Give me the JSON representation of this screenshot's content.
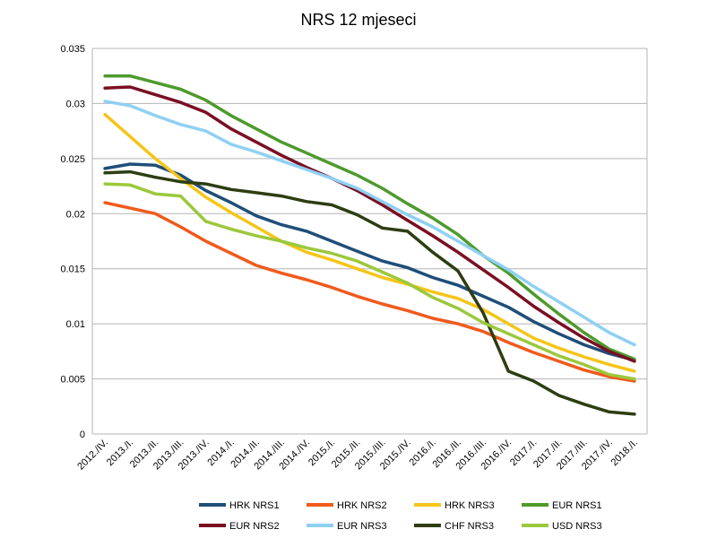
{
  "chart_data": {
    "type": "line",
    "title": "NRS 12 mjeseci",
    "xlabel": "",
    "ylabel": "",
    "ylim": [
      0,
      0.035
    ],
    "yticks": [
      "0",
      "0.005",
      "0.01",
      "0.015",
      "0.02",
      "0.025",
      "0.03",
      "0.035"
    ],
    "ytick_values": [
      0,
      0.005,
      0.01,
      0.015,
      0.02,
      0.025,
      0.03,
      0.035
    ],
    "grid": "horizontal",
    "legend_position": "bottom",
    "categories": [
      "2012./IV.",
      "2013./I.",
      "2013./II.",
      "2013./III.",
      "2013./IV.",
      "2014./I.",
      "2014./II.",
      "2014./III.",
      "2014./IV.",
      "2015./I.",
      "2015./II.",
      "2015./III.",
      "2015./IV.",
      "2016./I.",
      "2016./II.",
      "2016./III.",
      "2016./IV.",
      "2017./I.",
      "2017./II.",
      "2017./III.",
      "2017./IV.",
      "2018./I."
    ],
    "series": [
      {
        "name": "HRK NRS1",
        "color": "#1f4e79",
        "values": [
          0.0241,
          0.0245,
          0.0244,
          0.0235,
          0.0221,
          0.021,
          0.0198,
          0.019,
          0.0184,
          0.0175,
          0.0166,
          0.0157,
          0.0151,
          0.0142,
          0.0135,
          0.0125,
          0.0115,
          0.0102,
          0.0091,
          0.0081,
          0.0073,
          0.0067
        ]
      },
      {
        "name": "HRK NRS2",
        "color": "#f05a1c",
        "values": [
          0.021,
          0.0205,
          0.02,
          0.0188,
          0.0175,
          0.0164,
          0.0153,
          0.0146,
          0.014,
          0.0133,
          0.0125,
          0.0118,
          0.0112,
          0.0105,
          0.01,
          0.0093,
          0.0083,
          0.0074,
          0.0066,
          0.0058,
          0.0052,
          0.0048
        ]
      },
      {
        "name": "HRK NRS3",
        "color": "#f5c518",
        "values": [
          0.029,
          0.027,
          0.025,
          0.0232,
          0.0215,
          0.0201,
          0.0188,
          0.0175,
          0.0165,
          0.0158,
          0.015,
          0.0142,
          0.0136,
          0.0129,
          0.0123,
          0.0113,
          0.01,
          0.0087,
          0.0078,
          0.007,
          0.0063,
          0.0057
        ]
      },
      {
        "name": "EUR NRS1",
        "color": "#4e9a2d",
        "values": [
          0.0325,
          0.0325,
          0.0319,
          0.0313,
          0.0303,
          0.0289,
          0.0277,
          0.0265,
          0.0255,
          0.0245,
          0.0235,
          0.0223,
          0.0209,
          0.0196,
          0.0181,
          0.0162,
          0.0146,
          0.0127,
          0.0109,
          0.0092,
          0.0077,
          0.0068
        ]
      },
      {
        "name": "EUR NRS2",
        "color": "#7a0f23",
        "values": [
          0.0314,
          0.0315,
          0.0308,
          0.0301,
          0.0292,
          0.0277,
          0.0265,
          0.0253,
          0.0242,
          0.0232,
          0.0221,
          0.0208,
          0.0194,
          0.018,
          0.0165,
          0.0149,
          0.0133,
          0.0116,
          0.0101,
          0.0087,
          0.0075,
          0.0066
        ]
      },
      {
        "name": "EUR NRS3",
        "color": "#8fd0f2",
        "values": [
          0.0302,
          0.0298,
          0.0289,
          0.0281,
          0.0275,
          0.0263,
          0.0256,
          0.0248,
          0.024,
          0.0232,
          0.0223,
          0.0211,
          0.0199,
          0.0188,
          0.0175,
          0.0162,
          0.0149,
          0.0134,
          0.012,
          0.0106,
          0.0092,
          0.0081
        ]
      },
      {
        "name": "CHF NRS3",
        "color": "#2e3d12",
        "values": [
          0.0237,
          0.0238,
          0.0233,
          0.0229,
          0.0227,
          0.0222,
          0.0219,
          0.0216,
          0.0211,
          0.0208,
          0.0199,
          0.0187,
          0.0184,
          0.0165,
          0.0148,
          0.011,
          0.0057,
          0.0048,
          0.0035,
          0.0027,
          0.002,
          0.0018
        ]
      },
      {
        "name": "USD NRS3",
        "color": "#9bc83c",
        "values": [
          0.0227,
          0.0226,
          0.0218,
          0.0216,
          0.0193,
          0.0186,
          0.018,
          0.0175,
          0.0169,
          0.0164,
          0.0157,
          0.0147,
          0.0137,
          0.0124,
          0.0114,
          0.0101,
          0.0091,
          0.0081,
          0.0071,
          0.0063,
          0.0054,
          0.005
        ]
      }
    ]
  }
}
